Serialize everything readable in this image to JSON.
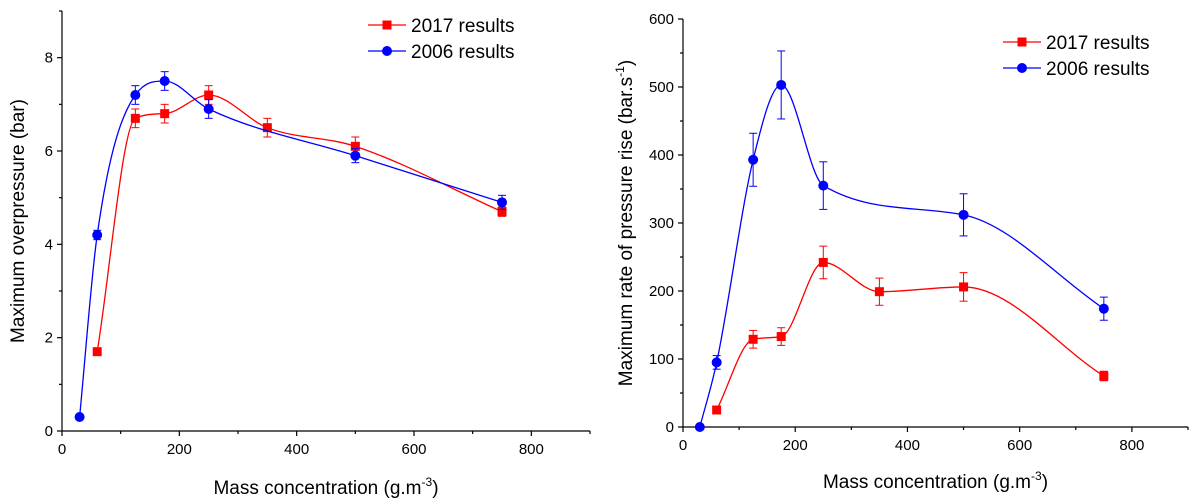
{
  "chart_data": [
    {
      "type": "line",
      "title": "",
      "xlabel": "Mass concentration (g.m",
      "xlabel_sup": "-3",
      "xlabel_end": ")",
      "ylabel": "Maximum overpressure (bar)",
      "xlim": [
        0,
        900
      ],
      "ylim": [
        0,
        9
      ],
      "xticks": [
        0,
        200,
        400,
        600,
        800
      ],
      "yticks": [
        0,
        2,
        4,
        6,
        8
      ],
      "legend_position": "top-right",
      "series": [
        {
          "name": "2017 results",
          "color": "#ff0000",
          "marker": "square",
          "x": [
            60,
            125,
            175,
            250,
            350,
            500,
            750
          ],
          "y": [
            1.7,
            6.7,
            6.8,
            7.2,
            6.5,
            6.1,
            4.7
          ],
          "err": [
            0,
            0.2,
            0.2,
            0.2,
            0.2,
            0.2,
            0.1
          ]
        },
        {
          "name": "2006 results",
          "color": "#0000ff",
          "marker": "circle",
          "x": [
            30,
            60,
            125,
            175,
            250,
            500,
            750
          ],
          "y": [
            0.3,
            4.2,
            7.2,
            7.5,
            6.9,
            5.9,
            4.9
          ],
          "err": [
            0,
            0.1,
            0.2,
            0.2,
            0.2,
            0.15,
            0.15
          ]
        }
      ]
    },
    {
      "type": "line",
      "title": "",
      "xlabel": "Mass concentration (g.m",
      "xlabel_sup": "-3",
      "xlabel_end": ")",
      "ylabel": "Maximum rate of pressure rise (bar.s",
      "ylabel_sup": "-1",
      "ylabel_end": ")",
      "xlim": [
        0,
        900
      ],
      "ylim": [
        0,
        600
      ],
      "xticks": [
        0,
        200,
        400,
        600,
        800
      ],
      "yticks": [
        0,
        100,
        200,
        300,
        400,
        500,
        600
      ],
      "legend_position": "top-right",
      "series": [
        {
          "name": "2017 results",
          "color": "#ff0000",
          "marker": "square",
          "x": [
            60,
            125,
            175,
            250,
            350,
            500,
            750
          ],
          "y": [
            25,
            129,
            133,
            242,
            199,
            206,
            75
          ],
          "err": [
            0,
            13,
            13,
            24,
            20,
            21,
            7
          ]
        },
        {
          "name": "2006 results",
          "color": "#0000ff",
          "marker": "circle",
          "x": [
            30,
            60,
            125,
            175,
            250,
            500,
            750
          ],
          "y": [
            0,
            95,
            393,
            503,
            355,
            312,
            174
          ],
          "err": [
            0,
            10,
            39,
            50,
            35,
            31,
            17
          ]
        }
      ]
    }
  ]
}
